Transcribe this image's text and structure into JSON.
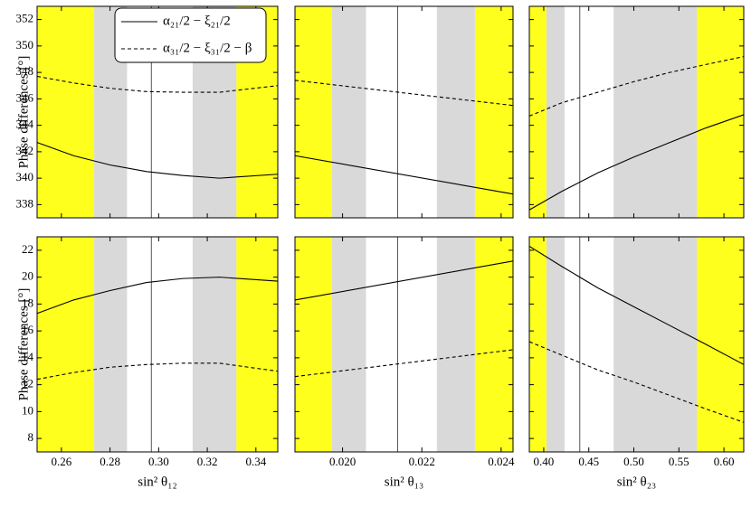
{
  "chart_data": [
    {
      "type": "line",
      "ylabel": "Phase differences [°]",
      "xlim": [
        0.25,
        0.349
      ],
      "ylim": [
        337,
        353
      ],
      "yticks": [
        338,
        340,
        342,
        344,
        346,
        348,
        350,
        352
      ],
      "vline": 0.297,
      "legend": "upper right",
      "bands": [
        {
          "from": 0.25,
          "to": 0.2735,
          "color": "#ffff1e"
        },
        {
          "from": 0.2735,
          "to": 0.287,
          "color": "#d9d9d9"
        },
        {
          "from": 0.314,
          "to": 0.332,
          "color": "#d9d9d9"
        },
        {
          "from": 0.332,
          "to": 0.349,
          "color": "#ffff1e"
        }
      ],
      "x": [
        0.25,
        0.265,
        0.28,
        0.295,
        0.31,
        0.325,
        0.349
      ],
      "series": [
        {
          "name": "α₂₁/2 − ξ₂₁/2",
          "color": "#000000",
          "linestyle": "solid",
          "values": [
            342.7,
            341.7,
            341.0,
            340.5,
            340.2,
            340.0,
            340.3
          ]
        },
        {
          "name": "α₃₁/2 − ξ₃₁/2 − β",
          "color": "#000000",
          "linestyle": "dashed",
          "values": [
            347.7,
            347.2,
            346.8,
            346.55,
            346.5,
            346.5,
            347.0
          ]
        }
      ]
    },
    {
      "type": "line",
      "xlim": [
        0.0188,
        0.0243
      ],
      "ylim": [
        337,
        353
      ],
      "vline": 0.02139,
      "bands": [
        {
          "from": 0.0188,
          "to": 0.01973,
          "color": "#ffff1e"
        },
        {
          "from": 0.01973,
          "to": 0.02059,
          "color": "#d9d9d9"
        },
        {
          "from": 0.02238,
          "to": 0.02334,
          "color": "#d9d9d9"
        },
        {
          "from": 0.02334,
          "to": 0.0243,
          "color": "#ffff1e"
        }
      ],
      "x": [
        0.0188,
        0.0243
      ],
      "series": [
        {
          "color": "#000000",
          "linestyle": "solid",
          "values": [
            341.7,
            338.8
          ]
        },
        {
          "color": "#000000",
          "linestyle": "dashed",
          "values": [
            347.4,
            345.5
          ]
        }
      ]
    },
    {
      "type": "line",
      "xlim": [
        0.384,
        0.622
      ],
      "ylim": [
        337,
        353
      ],
      "vline": 0.44,
      "bands": [
        {
          "from": 0.384,
          "to": 0.403,
          "color": "#ffff1e"
        },
        {
          "from": 0.403,
          "to": 0.4231,
          "color": "#d9d9d9"
        },
        {
          "from": 0.4776,
          "to": 0.5702,
          "color": "#d9d9d9"
        },
        {
          "from": 0.5702,
          "to": 0.622,
          "color": "#ffff1e"
        }
      ],
      "x": [
        0.384,
        0.42,
        0.46,
        0.5,
        0.54,
        0.58,
        0.622
      ],
      "series": [
        {
          "color": "#000000",
          "linestyle": "solid",
          "values": [
            337.6,
            339.0,
            340.4,
            341.6,
            342.7,
            343.8,
            344.8
          ]
        },
        {
          "color": "#000000",
          "linestyle": "dashed",
          "values": [
            344.7,
            345.7,
            346.5,
            347.3,
            348.0,
            348.6,
            349.2
          ]
        }
      ]
    },
    {
      "type": "line",
      "ylabel": "Phase differences [°]",
      "xlabel": "sin² θ₁₂",
      "xlim": [
        0.25,
        0.349
      ],
      "ylim": [
        7,
        23
      ],
      "xticks": [
        {
          "value": 0.26,
          "label": "0.26"
        },
        {
          "value": 0.28,
          "label": "0.28"
        },
        {
          "value": 0.3,
          "label": "0.30"
        },
        {
          "value": 0.32,
          "label": "0.32"
        },
        {
          "value": 0.34,
          "label": "0.34"
        }
      ],
      "yticks": [
        8,
        10,
        12,
        14,
        16,
        18,
        20,
        22
      ],
      "vline": 0.297,
      "bands": [
        {
          "from": 0.25,
          "to": 0.2735,
          "color": "#ffff1e"
        },
        {
          "from": 0.2735,
          "to": 0.287,
          "color": "#d9d9d9"
        },
        {
          "from": 0.314,
          "to": 0.332,
          "color": "#d9d9d9"
        },
        {
          "from": 0.332,
          "to": 0.349,
          "color": "#ffff1e"
        }
      ],
      "x": [
        0.25,
        0.265,
        0.28,
        0.295,
        0.31,
        0.325,
        0.349
      ],
      "series": [
        {
          "color": "#000000",
          "linestyle": "solid",
          "values": [
            17.3,
            18.3,
            19.0,
            19.6,
            19.9,
            20.0,
            19.7
          ]
        },
        {
          "color": "#000000",
          "linestyle": "dashed",
          "values": [
            12.4,
            12.9,
            13.3,
            13.5,
            13.6,
            13.6,
            13.0
          ]
        }
      ]
    },
    {
      "type": "line",
      "xlabel": "sin² θ₁₃",
      "xlim": [
        0.0188,
        0.0243
      ],
      "ylim": [
        7,
        23
      ],
      "xticks": [
        {
          "value": 0.02,
          "label": "0.020"
        },
        {
          "value": 0.022,
          "label": "0.022"
        },
        {
          "value": 0.024,
          "label": "0.024"
        }
      ],
      "vline": 0.02139,
      "bands": [
        {
          "from": 0.0188,
          "to": 0.01973,
          "color": "#ffff1e"
        },
        {
          "from": 0.01973,
          "to": 0.02059,
          "color": "#d9d9d9"
        },
        {
          "from": 0.02238,
          "to": 0.02334,
          "color": "#d9d9d9"
        },
        {
          "from": 0.02334,
          "to": 0.0243,
          "color": "#ffff1e"
        }
      ],
      "x": [
        0.0188,
        0.0243
      ],
      "series": [
        {
          "color": "#000000",
          "linestyle": "solid",
          "values": [
            18.3,
            21.2
          ]
        },
        {
          "color": "#000000",
          "linestyle": "dashed",
          "values": [
            12.6,
            14.6
          ]
        }
      ]
    },
    {
      "type": "line",
      "xlabel": "sin² θ₂₃",
      "xlim": [
        0.384,
        0.622
      ],
      "ylim": [
        7,
        23
      ],
      "xticks": [
        {
          "value": 0.4,
          "label": "0.40"
        },
        {
          "value": 0.45,
          "label": "0.45"
        },
        {
          "value": 0.5,
          "label": "0.50"
        },
        {
          "value": 0.55,
          "label": "0.55"
        },
        {
          "value": 0.6,
          "label": "0.60"
        }
      ],
      "vline": 0.44,
      "bands": [
        {
          "from": 0.384,
          "to": 0.403,
          "color": "#ffff1e"
        },
        {
          "from": 0.403,
          "to": 0.4231,
          "color": "#d9d9d9"
        },
        {
          "from": 0.4776,
          "to": 0.5702,
          "color": "#d9d9d9"
        },
        {
          "from": 0.5702,
          "to": 0.622,
          "color": "#ffff1e"
        }
      ],
      "x": [
        0.384,
        0.42,
        0.46,
        0.5,
        0.54,
        0.58,
        0.622
      ],
      "series": [
        {
          "color": "#000000",
          "linestyle": "solid",
          "values": [
            22.3,
            20.8,
            19.2,
            17.8,
            16.4,
            15.0,
            13.5
          ]
        },
        {
          "color": "#000000",
          "linestyle": "dashed",
          "values": [
            15.2,
            14.2,
            13.1,
            12.2,
            11.2,
            10.2,
            9.2
          ]
        }
      ]
    }
  ]
}
